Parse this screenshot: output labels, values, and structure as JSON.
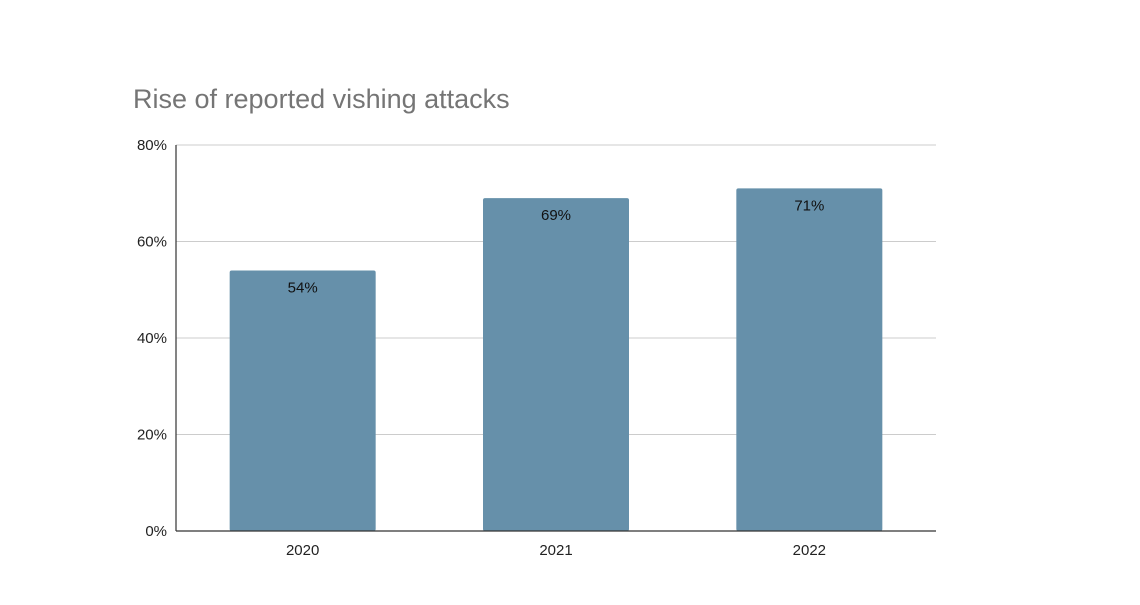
{
  "chart_data": {
    "type": "bar",
    "title": "Rise of reported vishing attacks",
    "categories": [
      "2020",
      "2021",
      "2022"
    ],
    "values": [
      54,
      69,
      71
    ],
    "data_labels": [
      "54%",
      "69%",
      "71%"
    ],
    "ylim": [
      0,
      80
    ],
    "yticks": [
      0,
      20,
      40,
      60,
      80
    ],
    "ytick_labels": [
      "0%",
      "20%",
      "40%",
      "60%",
      "80%"
    ],
    "xlabel": "",
    "ylabel": "",
    "grid": true,
    "legend": "none",
    "bar_color": "#6690aa",
    "grid_color": "#cccccc",
    "axis_color": "#333333",
    "title_color": "#757575"
  }
}
